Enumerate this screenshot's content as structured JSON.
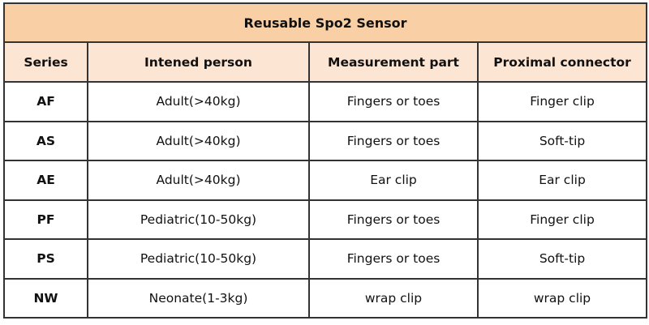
{
  "title": "Reusable Spo2 Sensor",
  "colors": {
    "title_bg": "#f9cfa6",
    "header_bg": "#fde5d3",
    "border": "#333333"
  },
  "headers": [
    "Series",
    "Intened person",
    "Measurement part",
    "Proximal connector"
  ],
  "rows": [
    [
      "AF",
      "Adult(>40kg)",
      "Fingers or toes",
      "Finger clip"
    ],
    [
      "AS",
      "Adult(>40kg)",
      "Fingers or toes",
      "Soft-tip"
    ],
    [
      "AE",
      "Adult(>40kg)",
      "Ear clip",
      "Ear clip"
    ],
    [
      "PF",
      "Pediatric(10-50kg)",
      "Fingers or toes",
      "Finger clip"
    ],
    [
      "PS",
      "Pediatric(10-50kg)",
      "Fingers or toes",
      "Soft-tip"
    ],
    [
      "NW",
      "Neonate(1-3kg)",
      "wrap clip",
      "wrap clip"
    ]
  ]
}
